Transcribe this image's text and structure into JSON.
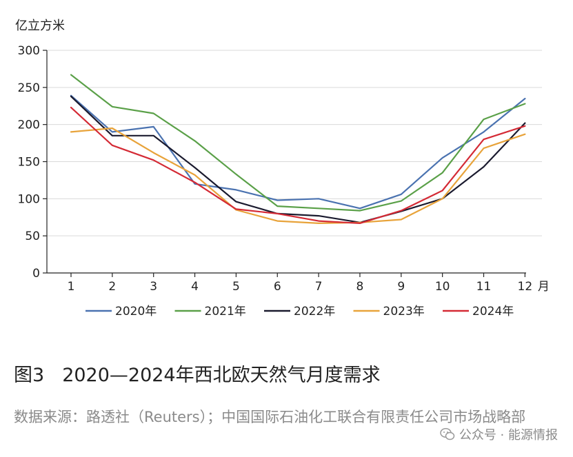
{
  "chart_data": {
    "type": "line",
    "ylabel": "亿立方米",
    "xunit": "月",
    "ylim": [
      0,
      300
    ],
    "yticks": [
      0,
      50,
      100,
      150,
      200,
      250,
      300
    ],
    "x": [
      1,
      2,
      3,
      4,
      5,
      6,
      7,
      8,
      9,
      10,
      11,
      12
    ],
    "grid": true,
    "legend_position": "bottom",
    "series": [
      {
        "name": "2020年",
        "color": "#4a72b0",
        "values": [
          239,
          190,
          197,
          120,
          112,
          98,
          100,
          87,
          106,
          155,
          190,
          235
        ]
      },
      {
        "name": "2021年",
        "color": "#5aa048",
        "values": [
          267,
          224,
          215,
          178,
          133,
          90,
          87,
          84,
          97,
          135,
          207,
          228
        ]
      },
      {
        "name": "2022年",
        "color": "#1a1a2e",
        "values": [
          238,
          185,
          185,
          142,
          96,
          80,
          77,
          68,
          83,
          100,
          143,
          202
        ]
      },
      {
        "name": "2023年",
        "color": "#e8a33a",
        "values": [
          190,
          195,
          162,
          132,
          85,
          70,
          67,
          68,
          72,
          100,
          168,
          187
        ]
      },
      {
        "name": "2024年",
        "color": "#d42a35",
        "values": [
          223,
          172,
          152,
          122,
          86,
          80,
          70,
          67,
          84,
          111,
          180,
          198
        ]
      }
    ]
  },
  "caption": {
    "figure_no": "图3",
    "title": "2020—2024年西北欧天然气月度需求"
  },
  "source": {
    "text": "数据来源：路透社（Reuters）；中国国际石油化工联合有限责任公司市场战略部"
  },
  "watermark": {
    "icon": "wechat-icon",
    "text": "公众号 · 能源情报"
  }
}
